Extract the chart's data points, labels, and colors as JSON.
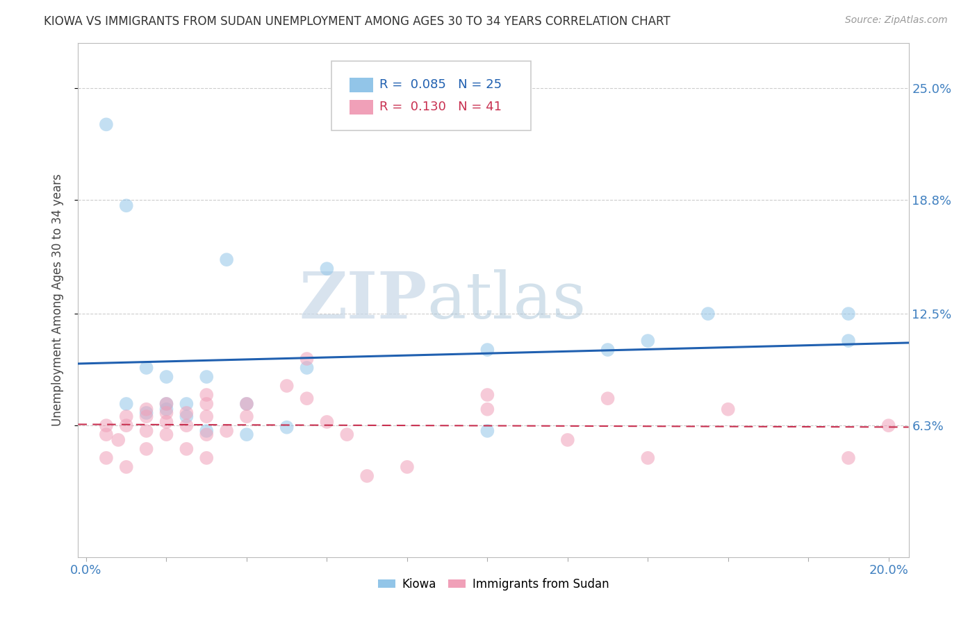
{
  "title": "KIOWA VS IMMIGRANTS FROM SUDAN UNEMPLOYMENT AMONG AGES 30 TO 34 YEARS CORRELATION CHART",
  "source": "Source: ZipAtlas.com",
  "ylabel": "Unemployment Among Ages 30 to 34 years",
  "xlim": [
    -0.002,
    0.205
  ],
  "ylim": [
    -0.01,
    0.275
  ],
  "ytick_labels": [
    "6.3%",
    "12.5%",
    "18.8%",
    "25.0%"
  ],
  "ytick_values": [
    0.063,
    0.125,
    0.188,
    0.25
  ],
  "legend_items": [
    {
      "label": "Kiowa",
      "R": 0.085,
      "N": 25
    },
    {
      "label": "Immigrants from Sudan",
      "R": 0.13,
      "N": 41
    }
  ],
  "kiowa_x": [
    0.005,
    0.01,
    0.01,
    0.015,
    0.015,
    0.02,
    0.02,
    0.02,
    0.025,
    0.025,
    0.03,
    0.03,
    0.035,
    0.04,
    0.04,
    0.05,
    0.055,
    0.06,
    0.1,
    0.1,
    0.13,
    0.14,
    0.155,
    0.19,
    0.19
  ],
  "kiowa_y": [
    0.23,
    0.185,
    0.075,
    0.095,
    0.07,
    0.072,
    0.075,
    0.09,
    0.075,
    0.068,
    0.09,
    0.06,
    0.155,
    0.075,
    0.058,
    0.062,
    0.095,
    0.15,
    0.06,
    0.105,
    0.105,
    0.11,
    0.125,
    0.11,
    0.125
  ],
  "sudan_x": [
    0.005,
    0.005,
    0.005,
    0.008,
    0.01,
    0.01,
    0.01,
    0.015,
    0.015,
    0.015,
    0.015,
    0.02,
    0.02,
    0.02,
    0.02,
    0.025,
    0.025,
    0.025,
    0.03,
    0.03,
    0.03,
    0.03,
    0.03,
    0.035,
    0.04,
    0.04,
    0.05,
    0.055,
    0.055,
    0.06,
    0.065,
    0.07,
    0.08,
    0.1,
    0.1,
    0.12,
    0.13,
    0.14,
    0.16,
    0.19,
    0.2
  ],
  "sudan_y": [
    0.063,
    0.058,
    0.045,
    0.055,
    0.068,
    0.063,
    0.04,
    0.072,
    0.068,
    0.06,
    0.05,
    0.075,
    0.07,
    0.065,
    0.058,
    0.07,
    0.063,
    0.05,
    0.08,
    0.075,
    0.068,
    0.058,
    0.045,
    0.06,
    0.075,
    0.068,
    0.085,
    0.1,
    0.078,
    0.065,
    0.058,
    0.035,
    0.04,
    0.08,
    0.072,
    0.055,
    0.078,
    0.045,
    0.072,
    0.045,
    0.063
  ],
  "kiowa_color": "#92C5E8",
  "sudan_color": "#F0A0B8",
  "kiowa_line_color": "#2060B0",
  "sudan_line_color": "#C83050",
  "watermark_zip": "ZIP",
  "watermark_atlas": "atlas",
  "background_color": "#FFFFFF",
  "grid_color": "#CCCCCC"
}
